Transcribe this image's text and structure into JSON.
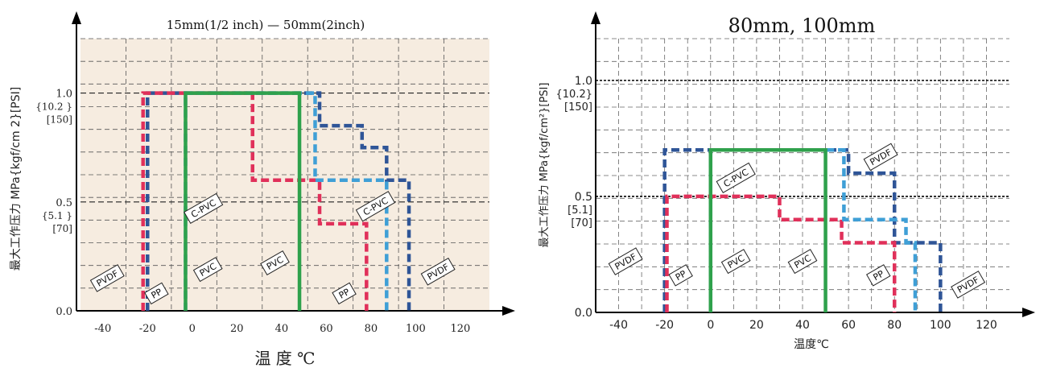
{
  "chart_data": [
    {
      "type": "line",
      "title": "15mm(1/2 inch) — 50mm(2inch)",
      "xlabel": "温 度 ℃",
      "ylabel": "最大工作压力 MPa{kgf/cm 2}[PSI]",
      "xlim": [
        -50,
        133
      ],
      "ylim": [
        0,
        1.25
      ],
      "xticks": [
        "-40",
        "-20",
        "0",
        "20",
        "40",
        "60",
        "80",
        "100",
        "120"
      ],
      "xtick_values": [
        -40,
        -20,
        0,
        20,
        40,
        60,
        80,
        100,
        120
      ],
      "yticks": [
        {
          "value": 1.0,
          "lines": [
            "1.0",
            "{10.2 }",
            "[150]"
          ]
        },
        {
          "value": 0.5,
          "lines": [
            "0.5",
            "{5.1 }",
            "[70]"
          ]
        },
        {
          "value": 0.0,
          "lines": [
            "0.0"
          ]
        }
      ],
      "background": "#f6ece0",
      "grid": true,
      "series": [
        {
          "name": "PVDF",
          "color": "#2f5597",
          "style": "dashed",
          "x": [
            -20,
            -20,
            57,
            57,
            76,
            76,
            87,
            87,
            97,
            97
          ],
          "y": [
            0,
            1.0,
            1.0,
            0.85,
            0.85,
            0.75,
            0.75,
            0.6,
            0.6,
            0
          ]
        },
        {
          "name": "PP",
          "color": "#e0305a",
          "style": "dashed",
          "x": [
            -22,
            -22,
            27,
            27,
            57,
            57,
            78,
            78
          ],
          "y": [
            0,
            1.0,
            1.0,
            0.6,
            0.6,
            0.4,
            0.4,
            0
          ]
        },
        {
          "name": "C-PVC",
          "color": "#3f9fd6",
          "style": "dashed",
          "x": [
            -3,
            -3,
            55,
            55,
            87,
            87
          ],
          "y": [
            0,
            1.0,
            1.0,
            0.6,
            0.6,
            0
          ]
        },
        {
          "name": "PVC",
          "color": "#2fa14c",
          "style": "solid",
          "x": [
            -3,
            -3,
            48,
            48
          ],
          "y": [
            0,
            1.0,
            1.0,
            0
          ]
        }
      ],
      "labels": [
        {
          "text": "PVDF",
          "x": -38,
          "y": 0.15
        },
        {
          "text": "PP",
          "x": -16,
          "y": 0.08
        },
        {
          "text": "C-PVC",
          "x": 5,
          "y": 0.47
        },
        {
          "text": "PVC",
          "x": 7,
          "y": 0.19
        },
        {
          "text": "PVC",
          "x": 37,
          "y": 0.22
        },
        {
          "text": "PP",
          "x": 68,
          "y": 0.08
        },
        {
          "text": "C-PVC",
          "x": 82,
          "y": 0.48
        },
        {
          "text": "PVDF",
          "x": 110,
          "y": 0.18
        }
      ]
    },
    {
      "type": "line",
      "title": "80mm, 100mm",
      "xlabel": "温度℃",
      "ylabel": "最大工作压力 MPa{kgf/cm²}[PSI]",
      "xlim": [
        -50,
        130
      ],
      "ylim": [
        0,
        1.18
      ],
      "xticks": [
        "-40",
        "-20",
        "0",
        "20",
        "40",
        "60",
        "80",
        "100",
        "120"
      ],
      "xtick_values": [
        -40,
        -20,
        0,
        20,
        40,
        60,
        80,
        100,
        120
      ],
      "yticks": [
        {
          "value": 1.0,
          "lines": [
            "1.0",
            "{10.2}",
            "[150]"
          ]
        },
        {
          "value": 0.5,
          "lines": [
            "0.5",
            "[5.1]",
            "[70]"
          ]
        },
        {
          "value": 0.0,
          "lines": [
            "0.0"
          ]
        }
      ],
      "background": "#ffffff",
      "grid": true,
      "series": [
        {
          "name": "PVDF",
          "color": "#2f5597",
          "style": "dashed",
          "x": [
            -20,
            -20,
            60,
            60,
            80,
            80,
            100,
            100
          ],
          "y": [
            0,
            0.7,
            0.7,
            0.6,
            0.6,
            0.3,
            0.3,
            0
          ]
        },
        {
          "name": "PP",
          "color": "#e0305a",
          "style": "dashed",
          "x": [
            -19,
            -19,
            30,
            30,
            57,
            57,
            80,
            80
          ],
          "y": [
            0,
            0.5,
            0.5,
            0.4,
            0.4,
            0.3,
            0.3,
            0
          ]
        },
        {
          "name": "C-PVC",
          "color": "#3f9fd6",
          "style": "dashed",
          "x": [
            0,
            0,
            58,
            58,
            85,
            85,
            89,
            89
          ],
          "y": [
            0,
            0.7,
            0.7,
            0.4,
            0.4,
            0.3,
            0.3,
            0
          ]
        },
        {
          "name": "PVC",
          "color": "#2fa14c",
          "style": "solid",
          "x": [
            0,
            0,
            50,
            50
          ],
          "y": [
            0,
            0.7,
            0.7,
            0
          ]
        }
      ],
      "labels": [
        {
          "text": "PVDF",
          "x": -37,
          "y": 0.22
        },
        {
          "text": "PP",
          "x": -13,
          "y": 0.16
        },
        {
          "text": "C-PVC",
          "x": 11,
          "y": 0.58
        },
        {
          "text": "PVC",
          "x": 11,
          "y": 0.22
        },
        {
          "text": "PVC",
          "x": 40,
          "y": 0.22
        },
        {
          "text": "PVDF",
          "x": 74,
          "y": 0.67
        },
        {
          "text": "PP",
          "x": 73,
          "y": 0.16
        },
        {
          "text": "PVDF",
          "x": 112,
          "y": 0.12
        }
      ]
    }
  ]
}
